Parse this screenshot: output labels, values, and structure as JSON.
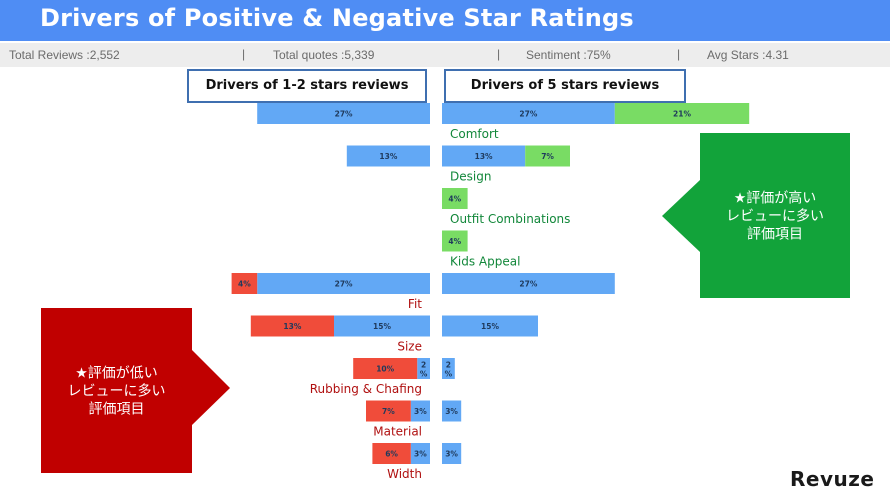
{
  "title": "Drivers of Positive & Negative Star Ratings",
  "stats": {
    "total_reviews": "Total Reviews :2,552",
    "total_quotes": "Total quotes :5,339",
    "sentiment": "Sentiment :75%",
    "avg_stars": "Avg Stars :4.31",
    "separator": "|"
  },
  "headers": {
    "left": "Drivers of 1-2 stars reviews",
    "right": "Drivers of 5 stars reviews"
  },
  "callouts": {
    "positive": [
      "★評価が高い",
      "レビューに多い",
      "評価項目"
    ],
    "negative": [
      "★評価が低い",
      "レビューに多い",
      "評価項目"
    ]
  },
  "logo": "Revuze",
  "colors": {
    "blue": "#62a8f5",
    "green": "#79dc64",
    "red": "#f04c3a",
    "positive_label": "#12873a",
    "negative_label": "#b01010",
    "positive_callout": "#12a33a",
    "negative_callout": "#c00000"
  },
  "chart_data": {
    "type": "bar",
    "orientation": "horizontal",
    "layout": "diverging",
    "sections": [
      "Drivers of 1-2 stars reviews",
      "Drivers of 5 stars reviews"
    ],
    "categories": [
      {
        "label": "Comfort",
        "group": "positive",
        "left": [
          {
            "kind": "blue",
            "value": 27
          }
        ],
        "right": [
          {
            "kind": "blue",
            "value": 27
          },
          {
            "kind": "green",
            "value": 21
          }
        ]
      },
      {
        "label": "Design",
        "group": "positive",
        "left": [
          {
            "kind": "blue",
            "value": 13
          }
        ],
        "right": [
          {
            "kind": "blue",
            "value": 13
          },
          {
            "kind": "green",
            "value": 7
          }
        ]
      },
      {
        "label": "Outfit Combinations",
        "group": "positive",
        "left": [],
        "right": [
          {
            "kind": "green",
            "value": 4
          }
        ]
      },
      {
        "label": "Kids Appeal",
        "group": "positive",
        "left": [],
        "right": [
          {
            "kind": "green",
            "value": 4
          }
        ]
      },
      {
        "label": "Fit",
        "group": "negative",
        "left": [
          {
            "kind": "blue",
            "value": 27
          },
          {
            "kind": "red",
            "value": 4
          }
        ],
        "right": [
          {
            "kind": "blue",
            "value": 27
          }
        ]
      },
      {
        "label": "Size",
        "group": "negative",
        "left": [
          {
            "kind": "blue",
            "value": 15
          },
          {
            "kind": "red",
            "value": 13
          }
        ],
        "right": [
          {
            "kind": "blue",
            "value": 15
          }
        ]
      },
      {
        "label": "Rubbing & Chafing",
        "group": "negative",
        "left": [
          {
            "kind": "blue",
            "value": 2
          },
          {
            "kind": "red",
            "value": 10
          }
        ],
        "right": [
          {
            "kind": "blue",
            "value": 2
          }
        ]
      },
      {
        "label": "Material",
        "group": "negative",
        "left": [
          {
            "kind": "blue",
            "value": 3
          },
          {
            "kind": "red",
            "value": 7
          }
        ],
        "right": [
          {
            "kind": "blue",
            "value": 3
          }
        ]
      },
      {
        "label": "Width",
        "group": "negative",
        "left": [
          {
            "kind": "blue",
            "value": 3
          },
          {
            "kind": "red",
            "value": 6
          }
        ],
        "right": [
          {
            "kind": "blue",
            "value": 3
          }
        ]
      }
    ],
    "value_suffix": "%"
  }
}
